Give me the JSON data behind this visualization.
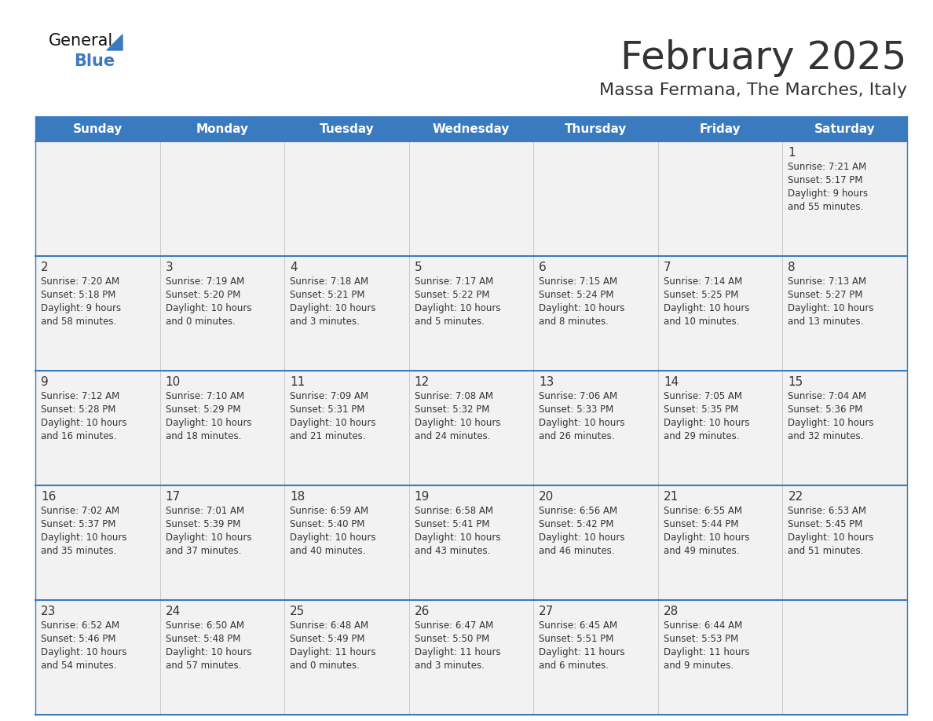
{
  "title": "February 2025",
  "subtitle": "Massa Fermana, The Marches, Italy",
  "header_color": "#3a7abf",
  "header_text_color": "#ffffff",
  "cell_bg_color": "#f2f2f2",
  "border_color": "#3a7abf",
  "text_color": "#333333",
  "days_of_week": [
    "Sunday",
    "Monday",
    "Tuesday",
    "Wednesday",
    "Thursday",
    "Friday",
    "Saturday"
  ],
  "weeks": [
    [
      {
        "day": null,
        "info": null
      },
      {
        "day": null,
        "info": null
      },
      {
        "day": null,
        "info": null
      },
      {
        "day": null,
        "info": null
      },
      {
        "day": null,
        "info": null
      },
      {
        "day": null,
        "info": null
      },
      {
        "day": 1,
        "info": "Sunrise: 7:21 AM\nSunset: 5:17 PM\nDaylight: 9 hours\nand 55 minutes."
      }
    ],
    [
      {
        "day": 2,
        "info": "Sunrise: 7:20 AM\nSunset: 5:18 PM\nDaylight: 9 hours\nand 58 minutes."
      },
      {
        "day": 3,
        "info": "Sunrise: 7:19 AM\nSunset: 5:20 PM\nDaylight: 10 hours\nand 0 minutes."
      },
      {
        "day": 4,
        "info": "Sunrise: 7:18 AM\nSunset: 5:21 PM\nDaylight: 10 hours\nand 3 minutes."
      },
      {
        "day": 5,
        "info": "Sunrise: 7:17 AM\nSunset: 5:22 PM\nDaylight: 10 hours\nand 5 minutes."
      },
      {
        "day": 6,
        "info": "Sunrise: 7:15 AM\nSunset: 5:24 PM\nDaylight: 10 hours\nand 8 minutes."
      },
      {
        "day": 7,
        "info": "Sunrise: 7:14 AM\nSunset: 5:25 PM\nDaylight: 10 hours\nand 10 minutes."
      },
      {
        "day": 8,
        "info": "Sunrise: 7:13 AM\nSunset: 5:27 PM\nDaylight: 10 hours\nand 13 minutes."
      }
    ],
    [
      {
        "day": 9,
        "info": "Sunrise: 7:12 AM\nSunset: 5:28 PM\nDaylight: 10 hours\nand 16 minutes."
      },
      {
        "day": 10,
        "info": "Sunrise: 7:10 AM\nSunset: 5:29 PM\nDaylight: 10 hours\nand 18 minutes."
      },
      {
        "day": 11,
        "info": "Sunrise: 7:09 AM\nSunset: 5:31 PM\nDaylight: 10 hours\nand 21 minutes."
      },
      {
        "day": 12,
        "info": "Sunrise: 7:08 AM\nSunset: 5:32 PM\nDaylight: 10 hours\nand 24 minutes."
      },
      {
        "day": 13,
        "info": "Sunrise: 7:06 AM\nSunset: 5:33 PM\nDaylight: 10 hours\nand 26 minutes."
      },
      {
        "day": 14,
        "info": "Sunrise: 7:05 AM\nSunset: 5:35 PM\nDaylight: 10 hours\nand 29 minutes."
      },
      {
        "day": 15,
        "info": "Sunrise: 7:04 AM\nSunset: 5:36 PM\nDaylight: 10 hours\nand 32 minutes."
      }
    ],
    [
      {
        "day": 16,
        "info": "Sunrise: 7:02 AM\nSunset: 5:37 PM\nDaylight: 10 hours\nand 35 minutes."
      },
      {
        "day": 17,
        "info": "Sunrise: 7:01 AM\nSunset: 5:39 PM\nDaylight: 10 hours\nand 37 minutes."
      },
      {
        "day": 18,
        "info": "Sunrise: 6:59 AM\nSunset: 5:40 PM\nDaylight: 10 hours\nand 40 minutes."
      },
      {
        "day": 19,
        "info": "Sunrise: 6:58 AM\nSunset: 5:41 PM\nDaylight: 10 hours\nand 43 minutes."
      },
      {
        "day": 20,
        "info": "Sunrise: 6:56 AM\nSunset: 5:42 PM\nDaylight: 10 hours\nand 46 minutes."
      },
      {
        "day": 21,
        "info": "Sunrise: 6:55 AM\nSunset: 5:44 PM\nDaylight: 10 hours\nand 49 minutes."
      },
      {
        "day": 22,
        "info": "Sunrise: 6:53 AM\nSunset: 5:45 PM\nDaylight: 10 hours\nand 51 minutes."
      }
    ],
    [
      {
        "day": 23,
        "info": "Sunrise: 6:52 AM\nSunset: 5:46 PM\nDaylight: 10 hours\nand 54 minutes."
      },
      {
        "day": 24,
        "info": "Sunrise: 6:50 AM\nSunset: 5:48 PM\nDaylight: 10 hours\nand 57 minutes."
      },
      {
        "day": 25,
        "info": "Sunrise: 6:48 AM\nSunset: 5:49 PM\nDaylight: 11 hours\nand 0 minutes."
      },
      {
        "day": 26,
        "info": "Sunrise: 6:47 AM\nSunset: 5:50 PM\nDaylight: 11 hours\nand 3 minutes."
      },
      {
        "day": 27,
        "info": "Sunrise: 6:45 AM\nSunset: 5:51 PM\nDaylight: 11 hours\nand 6 minutes."
      },
      {
        "day": 28,
        "info": "Sunrise: 6:44 AM\nSunset: 5:53 PM\nDaylight: 11 hours\nand 9 minutes."
      },
      {
        "day": null,
        "info": null
      }
    ]
  ],
  "logo_general_color": "#111111",
  "logo_blue_color": "#3a7abf",
  "logo_triangle_color": "#3a7abf",
  "title_fontsize": 36,
  "subtitle_fontsize": 16,
  "header_fontsize": 11,
  "day_num_fontsize": 11,
  "cell_text_fontsize": 8.5
}
